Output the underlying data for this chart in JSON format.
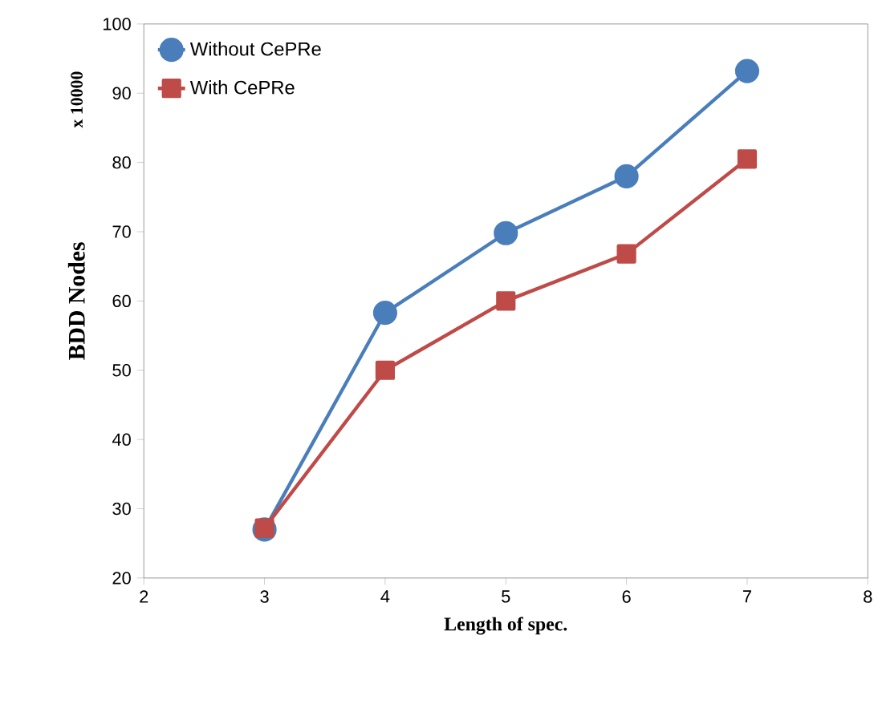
{
  "chart_data": {
    "type": "line",
    "xlabel": "Length of spec.",
    "ylabel": "BDD Nodes",
    "annotations": [
      "x 10000"
    ],
    "x": [
      3,
      4,
      5,
      6,
      7
    ],
    "series": [
      {
        "name": "Without CePRe",
        "color": "#4a7ebb",
        "marker": "circle",
        "values": [
          27,
          58.3,
          69.8,
          78,
          93.2
        ]
      },
      {
        "name": "With CePRe",
        "color": "#be4b48",
        "marker": "square",
        "values": [
          27.2,
          50,
          60,
          66.8,
          80.5
        ]
      }
    ],
    "xlim": [
      2,
      8
    ],
    "xticks": [
      2,
      3,
      4,
      5,
      6,
      7,
      8
    ],
    "ylim": [
      20,
      100
    ],
    "yticks": [
      20,
      30,
      40,
      50,
      60,
      70,
      80,
      90,
      100
    ],
    "grid": false,
    "legend": "top left",
    "line_style": "solid"
  }
}
